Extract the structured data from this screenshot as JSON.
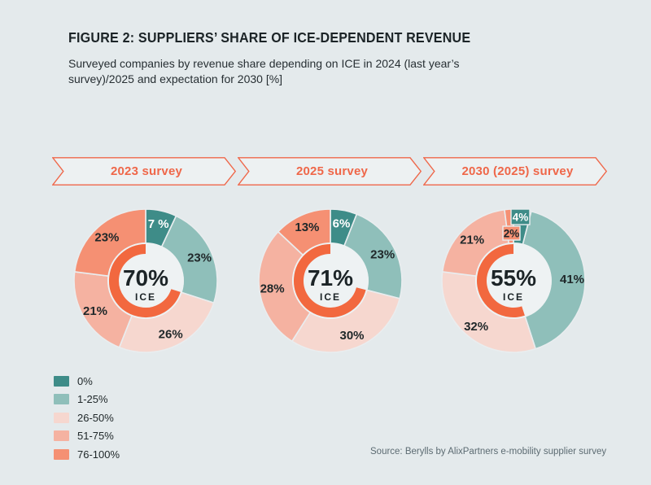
{
  "header": {
    "title": "FIGURE 2: SUPPLIERS’ SHARE OF ICE-DEPENDENT REVENUE",
    "subtitle": "Surveyed companies by revenue share depending on ICE in 2024 (last year’s survey)/2025 and expectation for 2030 [%]"
  },
  "source": "Source: Berylls by AlixPartners e-mobility supplier survey",
  "colors": {
    "background": "#e4eaec",
    "accent": "#ef6749",
    "banner_fill": "#edf1f2",
    "hole_fill": "#eef2f3",
    "slice_separator": "#e9edef",
    "text_dark": "#1c2427",
    "label": "#20282a",
    "white_label": "#ffffff",
    "source_text": "#5c6b72"
  },
  "chart_data": {
    "type": "pie",
    "subtype": "donut-with-inner-gauge",
    "categories": [
      "0%",
      "1-25%",
      "26-50%",
      "51-75%",
      "76-100%"
    ],
    "series_colors": [
      "#3e8c88",
      "#8fbfba",
      "#f6d7cf",
      "#f5b2a1",
      "#f59073"
    ],
    "gauge_color": "#f2683f",
    "legend_position": "bottom-left",
    "units": "% of surveyed companies",
    "charts": [
      {
        "banner": "2023 survey",
        "values": [
          7,
          23,
          26,
          21,
          23
        ],
        "labels": [
          "7 %",
          "23%",
          "26%",
          "21%",
          "23%"
        ],
        "center_value": "70%",
        "center_label": "ICE",
        "ice_share_pct": 70
      },
      {
        "banner": "2025 survey",
        "values": [
          6,
          23,
          30,
          28,
          13
        ],
        "labels": [
          "6%",
          "23%",
          "30%",
          "28%",
          "13%"
        ],
        "center_value": "71%",
        "center_label": "ICE",
        "ice_share_pct": 71
      },
      {
        "banner": "2030 (2025) survey",
        "values": [
          4,
          41,
          32,
          21,
          2
        ],
        "labels": [
          "4%",
          "41%",
          "32%",
          "21%",
          "2%"
        ],
        "center_value": "55%",
        "center_label": "ICE",
        "ice_share_pct": 55,
        "callout_labels": [
          {
            "index": 0,
            "x": 97,
            "y": 12,
            "w": 23,
            "h": 19,
            "text_color": "#ffffff"
          },
          {
            "index": 4,
            "x": 87,
            "y": 33,
            "w": 21,
            "h": 17,
            "text_color": "#1d2528"
          }
        ]
      }
    ]
  }
}
